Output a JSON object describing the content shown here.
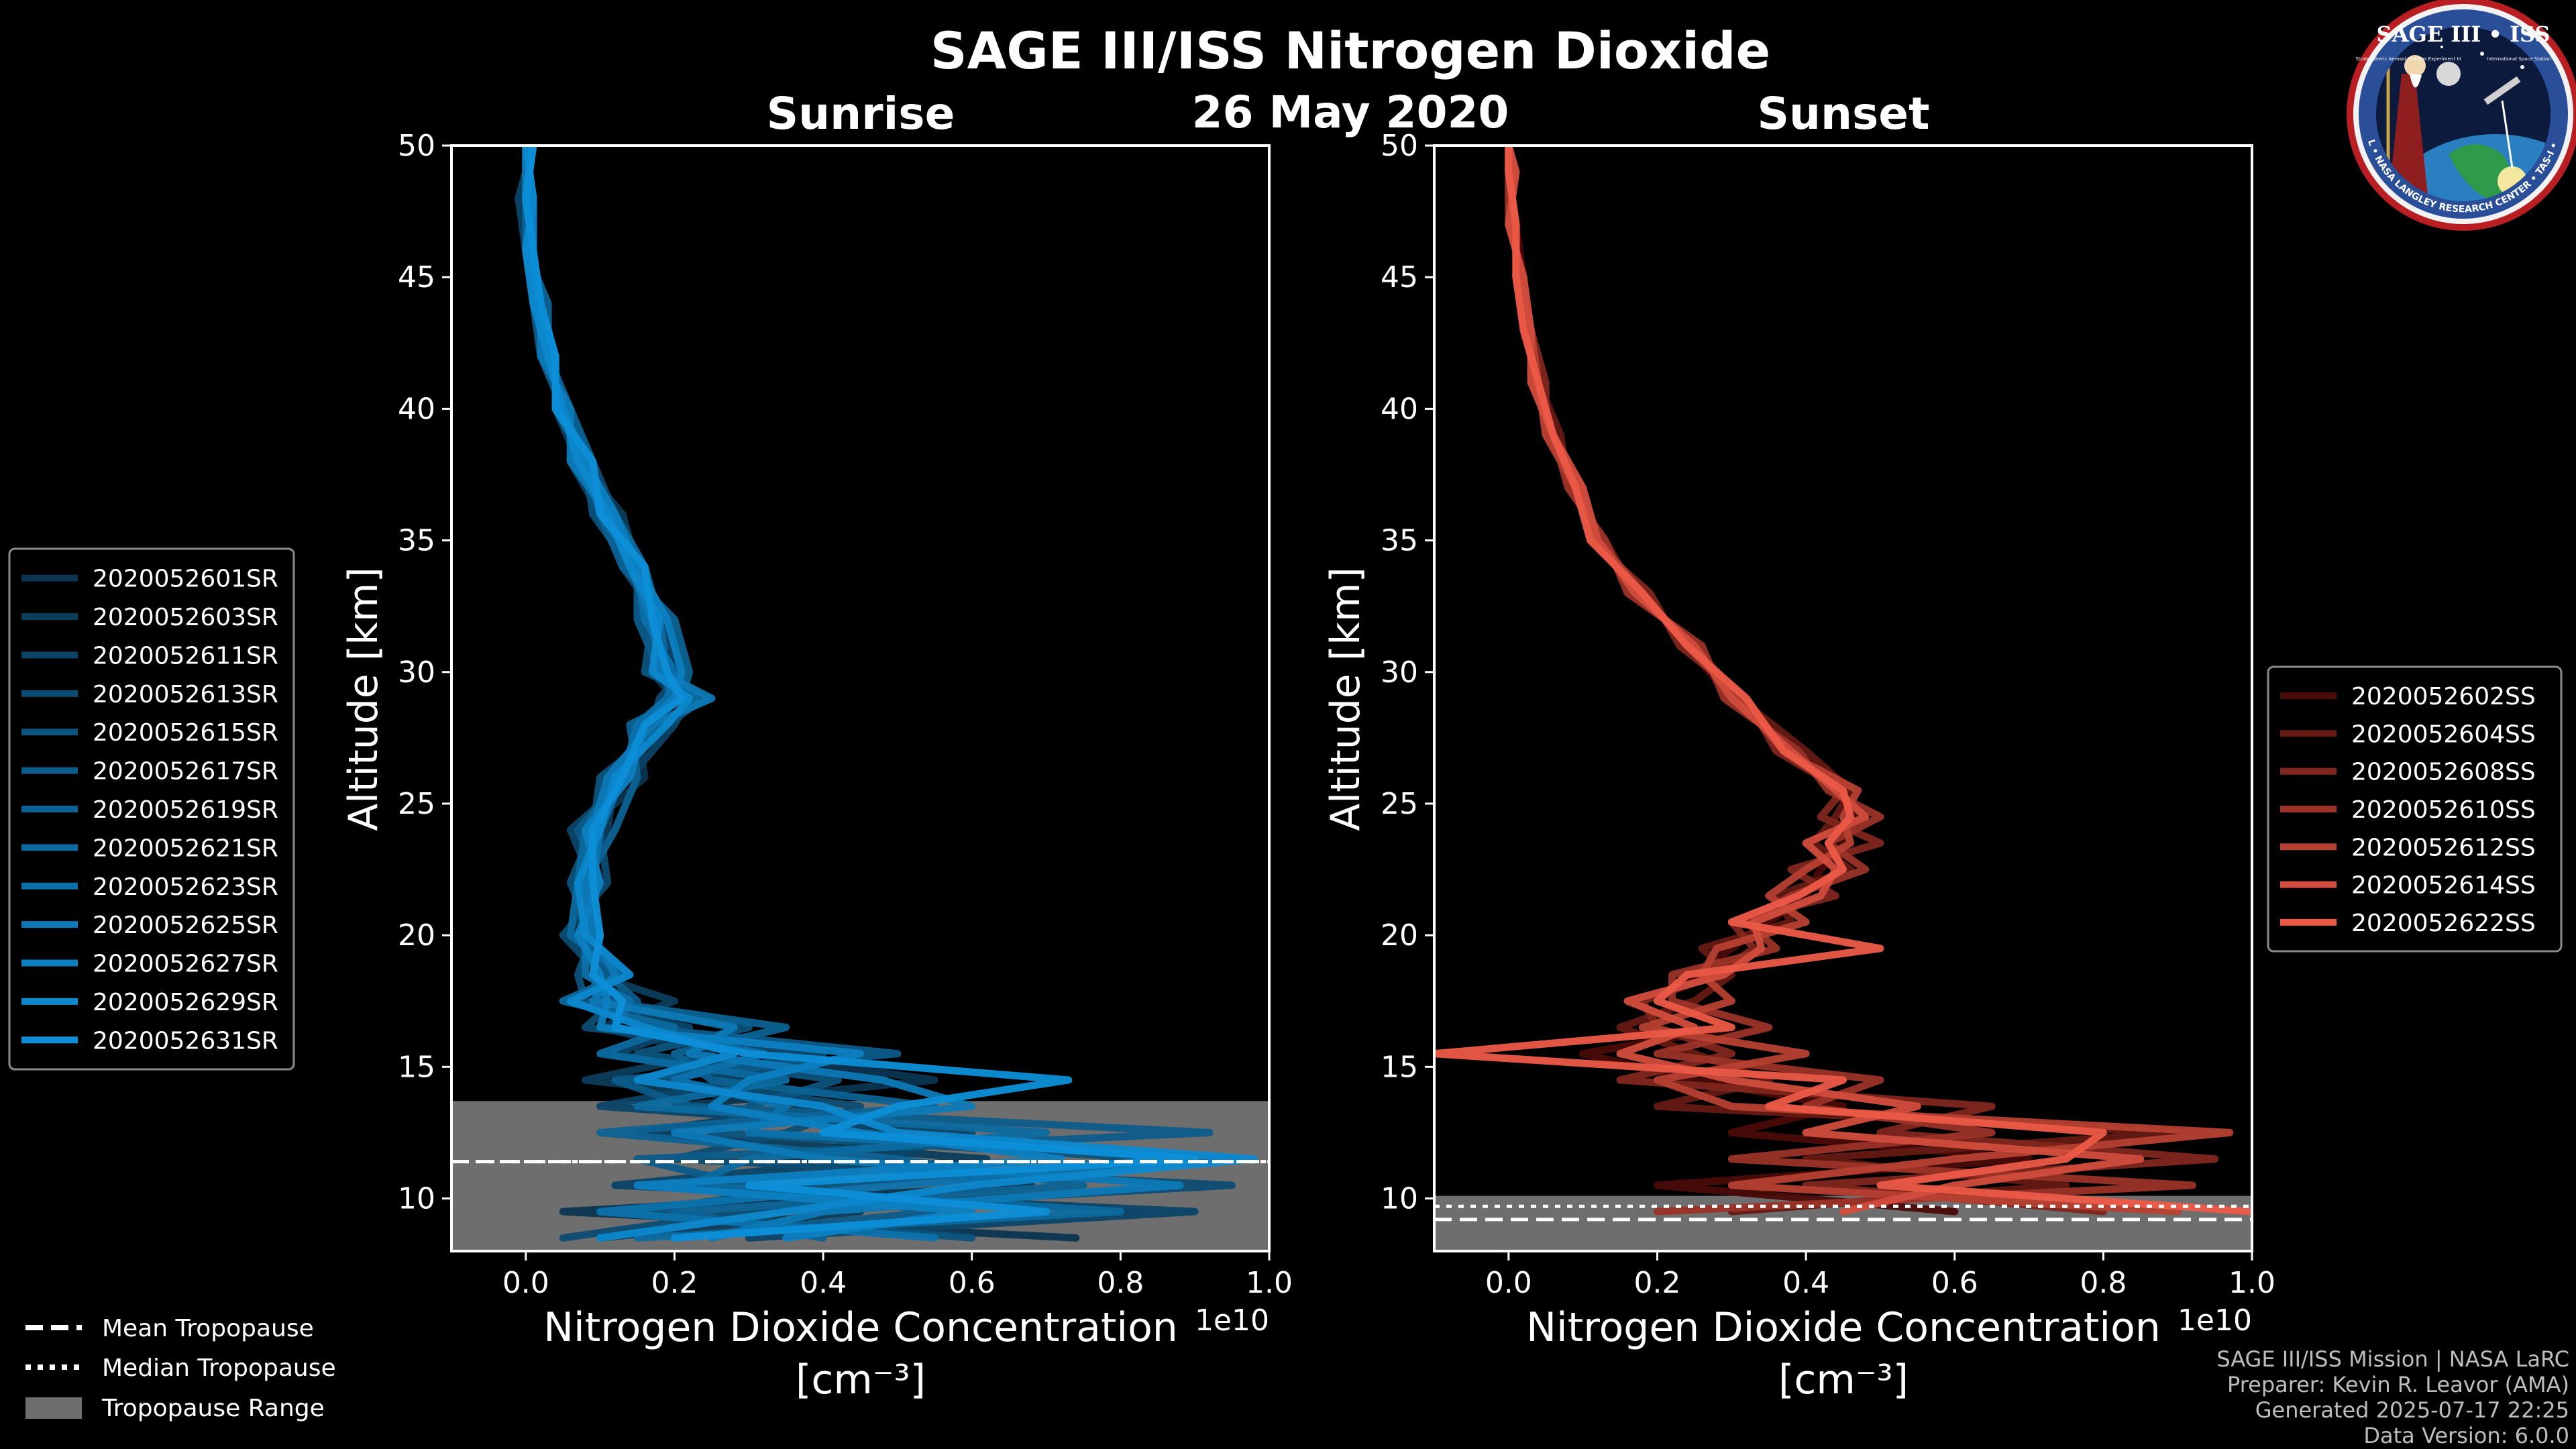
{
  "page": {
    "title": "SAGE III/ISS Nitrogen Dioxide",
    "date": "26 May 2020",
    "footer": [
      "SAGE III/ISS Mission | NASA LaRC",
      "Preparer: Kevin R. Leavor (AMA)",
      "Generated 2025-07-17 22:25",
      "Data Version: 6.0.0"
    ],
    "logo": {
      "title": "SAGE III • ISS",
      "ring_text": "BALL • NASA LANGLEY RESEARCH CENTER • TAS-I • ESA",
      "small_left": "Stratospheric Aerosol and Gas Experiment III",
      "small_right": "International Space Station"
    }
  },
  "tropopause_legend": {
    "mean": "Mean Tropopause",
    "median": "Median Tropopause",
    "range": "Tropopause Range"
  },
  "colors": {
    "sunrise_dark": "#0b3550",
    "sunrise_light": "#0d8fd8",
    "sunset_dark": "#4a0c08",
    "sunset_light": "#ec5a47",
    "tropopause_range": "#6e6e6e"
  },
  "chart_data": [
    {
      "type": "line",
      "title": "Sunrise",
      "xlabel": "Nitrogen Dioxide Concentration",
      "xlabel_units": "[cm⁻³]",
      "ylabel": "Altitude [km]",
      "x_multiplier": "1e10",
      "xlim": [
        -0.1,
        1.0
      ],
      "ylim": [
        8,
        50
      ],
      "xticks": [
        "0.0",
        "0.2",
        "0.4",
        "0.6",
        "0.8",
        "1.0"
      ],
      "yticks": [
        "10",
        "15",
        "20",
        "25",
        "30",
        "35",
        "40",
        "45",
        "50"
      ],
      "legend_position": "left",
      "altitude": [
        8.5,
        9.5,
        10.5,
        11.5,
        12.5,
        13.5,
        14.5,
        15.5,
        16.5,
        17.5,
        18.5,
        20,
        22,
        24,
        26,
        28,
        29,
        30,
        32,
        34,
        36,
        38,
        40,
        42,
        44,
        46,
        48,
        50
      ],
      "series": [
        {
          "name": "2020052601SR",
          "values": [
            0.74,
            0.05,
            0.68,
            0.35,
            0.5,
            0.2,
            0.55,
            0.3,
            0.18,
            0.07,
            0.12,
            0.06,
            0.1,
            0.08,
            0.16,
            0.15,
            0.19,
            0.2,
            0.17,
            0.14,
            0.11,
            0.08,
            0.05,
            0.03,
            0.02,
            0.0,
            0.01,
            0.0
          ]
        },
        {
          "name": "2020052603SR",
          "values": [
            0.1,
            0.45,
            0.2,
            0.62,
            0.15,
            0.4,
            0.08,
            0.25,
            0.1,
            0.2,
            0.09,
            0.1,
            0.07,
            0.11,
            0.12,
            0.18,
            0.2,
            0.17,
            0.19,
            0.15,
            0.13,
            0.07,
            0.04,
            0.04,
            0.01,
            0.01,
            0.0,
            0.0
          ]
        },
        {
          "name": "2020052611SR",
          "values": [
            0.3,
            0.9,
            0.12,
            0.48,
            0.6,
            0.1,
            0.3,
            0.12,
            0.22,
            0.06,
            0.14,
            0.08,
            0.09,
            0.06,
            0.14,
            0.2,
            0.22,
            0.19,
            0.16,
            0.16,
            0.1,
            0.06,
            0.06,
            0.02,
            0.03,
            0.0,
            -0.01,
            0.01
          ]
        },
        {
          "name": "2020052613SR",
          "values": [
            0.05,
            0.3,
            0.95,
            0.2,
            0.35,
            0.45,
            0.18,
            0.4,
            0.08,
            0.12,
            0.1,
            0.05,
            0.11,
            0.1,
            0.11,
            0.17,
            0.18,
            0.21,
            0.18,
            0.13,
            0.12,
            0.09,
            0.05,
            0.03,
            0.02,
            0.01,
            0.01,
            0.0
          ]
        },
        {
          "name": "2020052615SR",
          "values": [
            0.6,
            0.15,
            0.4,
            0.85,
            0.25,
            0.3,
            0.42,
            0.15,
            0.3,
            0.08,
            0.07,
            0.09,
            0.06,
            0.09,
            0.1,
            0.19,
            0.24,
            0.16,
            0.17,
            0.14,
            0.09,
            0.08,
            0.04,
            0.04,
            0.02,
            0.0,
            0.0,
            0.01
          ]
        },
        {
          "name": "2020052617SR",
          "values": [
            0.2,
            0.55,
            0.3,
            0.15,
            0.92,
            0.22,
            0.12,
            0.5,
            0.15,
            0.15,
            0.11,
            0.07,
            0.1,
            0.07,
            0.13,
            0.16,
            0.2,
            0.18,
            0.15,
            0.15,
            0.11,
            0.07,
            0.05,
            0.02,
            0.01,
            0.01,
            0.01,
            0.0
          ]
        },
        {
          "name": "2020052619SR",
          "values": [
            0.4,
            0.2,
            0.75,
            0.5,
            0.1,
            0.55,
            0.25,
            0.2,
            0.35,
            0.1,
            0.09,
            0.1,
            0.08,
            0.12,
            0.15,
            0.14,
            0.21,
            0.22,
            0.2,
            0.13,
            0.1,
            0.09,
            0.06,
            0.03,
            0.03,
            0.0,
            0.0,
            0.0
          ]
        },
        {
          "name": "2020052621SR",
          "values": [
            0.15,
            0.8,
            0.22,
            0.3,
            0.7,
            0.15,
            0.35,
            0.1,
            0.2,
            0.05,
            0.13,
            0.06,
            0.07,
            0.08,
            0.12,
            0.18,
            0.23,
            0.19,
            0.18,
            0.16,
            0.12,
            0.07,
            0.05,
            0.03,
            0.02,
            0.01,
            0.0,
            0.01
          ]
        },
        {
          "name": "2020052623SR",
          "values": [
            0.55,
            0.1,
            0.5,
            0.95,
            0.3,
            0.35,
            0.2,
            0.32,
            0.12,
            0.14,
            0.08,
            0.08,
            0.09,
            0.1,
            0.13,
            0.15,
            0.19,
            0.2,
            0.16,
            0.15,
            0.1,
            0.08,
            0.04,
            0.04,
            0.01,
            0.0,
            0.01,
            0.0
          ]
        },
        {
          "name": "2020052625SR",
          "values": [
            0.25,
            0.4,
            0.88,
            0.4,
            0.2,
            0.6,
            0.48,
            0.22,
            0.28,
            0.09,
            0.12,
            0.09,
            0.08,
            0.09,
            0.11,
            0.17,
            0.25,
            0.18,
            0.17,
            0.14,
            0.11,
            0.06,
            0.06,
            0.02,
            0.02,
            0.01,
            0.0,
            0.0
          ]
        },
        {
          "name": "2020052627SR",
          "values": [
            0.35,
            0.6,
            0.15,
            0.72,
            0.45,
            0.25,
            0.3,
            0.45,
            0.1,
            0.11,
            0.1,
            0.07,
            0.1,
            0.08,
            0.14,
            0.16,
            0.2,
            0.21,
            0.19,
            0.15,
            0.12,
            0.08,
            0.05,
            0.03,
            0.02,
            0.01,
            0.01,
            0.0
          ]
        },
        {
          "name": "2020052629SR",
          "values": [
            0.1,
            0.35,
            0.6,
            0.98,
            0.5,
            0.4,
            0.15,
            0.28,
            0.16,
            0.06,
            0.14,
            0.08,
            0.07,
            0.1,
            0.12,
            0.19,
            0.22,
            0.17,
            0.18,
            0.14,
            0.11,
            0.07,
            0.05,
            0.03,
            0.01,
            0.0,
            0.01,
            0.0
          ]
        },
        {
          "name": "2020052631SR",
          "values": [
            0.2,
            0.7,
            0.3,
            0.9,
            0.4,
            0.5,
            0.73,
            0.3,
            0.12,
            0.13,
            0.09,
            0.1,
            0.09,
            0.09,
            0.13,
            0.16,
            0.21,
            0.19,
            0.17,
            0.16,
            0.1,
            0.09,
            0.04,
            0.04,
            0.02,
            0.01,
            0.0,
            0.01
          ]
        }
      ],
      "tropopause": {
        "mean": 11.4,
        "median": 11.4,
        "range": [
          8,
          13.7
        ]
      }
    },
    {
      "type": "line",
      "title": "Sunset",
      "xlabel": "Nitrogen Dioxide Concentration",
      "xlabel_units": "[cm⁻³]",
      "ylabel": "Altitude [km]",
      "x_multiplier": "1e10",
      "xlim": [
        -0.1,
        1.0
      ],
      "ylim": [
        8,
        50
      ],
      "xticks": [
        "0.0",
        "0.2",
        "0.4",
        "0.6",
        "0.8",
        "1.0"
      ],
      "yticks": [
        "10",
        "15",
        "20",
        "25",
        "30",
        "35",
        "40",
        "45",
        "50"
      ],
      "legend_position": "right",
      "altitude": [
        9.5,
        10.5,
        11.5,
        12.5,
        13.5,
        14.5,
        15.5,
        16.5,
        17.5,
        18.5,
        19.5,
        20.5,
        21.5,
        22.5,
        23.5,
        24.5,
        25.5,
        27,
        29,
        31,
        33,
        35,
        37,
        39,
        41,
        43,
        45,
        47,
        49,
        50
      ],
      "series": [
        {
          "name": "2020052602SS",
          "values": [
            0.6,
            0.2,
            0.7,
            0.3,
            0.45,
            0.25,
            0.1,
            0.3,
            0.2,
            0.25,
            0.3,
            0.35,
            0.4,
            0.42,
            0.45,
            0.47,
            0.44,
            0.38,
            0.3,
            0.24,
            0.18,
            0.12,
            0.09,
            0.06,
            0.04,
            0.03,
            0.02,
            0.01,
            0.0,
            0.0
          ]
        },
        {
          "name": "2020052604SS",
          "values": [
            0.3,
            0.75,
            0.4,
            0.9,
            0.2,
            0.35,
            0.25,
            0.15,
            0.25,
            0.3,
            0.26,
            0.38,
            0.36,
            0.46,
            0.41,
            0.44,
            0.46,
            0.4,
            0.31,
            0.25,
            0.17,
            0.13,
            0.08,
            0.07,
            0.04,
            0.02,
            0.02,
            0.0,
            0.01,
            0.0
          ]
        },
        {
          "name": "2020052608SS",
          "values": [
            0.8,
            0.4,
            0.95,
            0.5,
            0.65,
            0.15,
            0.3,
            0.2,
            0.18,
            0.28,
            0.33,
            0.3,
            0.44,
            0.38,
            0.5,
            0.42,
            0.45,
            0.36,
            0.32,
            0.23,
            0.19,
            0.11,
            0.1,
            0.05,
            0.05,
            0.03,
            0.01,
            0.01,
            0.0,
            0.0
          ]
        },
        {
          "name": "2020052610SS",
          "values": [
            0.2,
            0.92,
            0.3,
            0.65,
            0.4,
            0.5,
            0.2,
            0.35,
            0.22,
            0.22,
            0.36,
            0.32,
            0.38,
            0.48,
            0.43,
            0.5,
            0.43,
            0.39,
            0.29,
            0.26,
            0.16,
            0.13,
            0.08,
            0.06,
            0.04,
            0.02,
            0.02,
            0.0,
            0.0,
            0.0
          ]
        },
        {
          "name": "2020052612SS",
          "values": [
            0.9,
            0.3,
            0.6,
            0.97,
            0.3,
            0.2,
            0.4,
            0.18,
            0.3,
            0.26,
            0.28,
            0.4,
            0.35,
            0.4,
            0.46,
            0.45,
            0.47,
            0.37,
            0.31,
            0.24,
            0.18,
            0.12,
            0.09,
            0.05,
            0.04,
            0.03,
            0.01,
            0.01,
            0.0,
            0.0
          ]
        },
        {
          "name": "2020052614SS",
          "values": [
            0.45,
            0.6,
            0.85,
            0.4,
            0.55,
            0.3,
            0.15,
            0.25,
            0.16,
            0.29,
            0.34,
            0.33,
            0.42,
            0.44,
            0.4,
            0.48,
            0.44,
            0.38,
            0.3,
            0.25,
            0.17,
            0.12,
            0.1,
            0.06,
            0.03,
            0.03,
            0.02,
            0.0,
            0.01,
            0.0
          ]
        },
        {
          "name": "2020052622SS",
          "values": [
            1.0,
            0.5,
            0.75,
            0.8,
            0.35,
            0.45,
            -0.1,
            0.3,
            0.2,
            0.24,
            0.5,
            0.3,
            0.39,
            0.45,
            0.43,
            0.46,
            0.45,
            0.37,
            0.32,
            0.24,
            0.18,
            0.11,
            0.09,
            0.06,
            0.04,
            0.02,
            0.01,
            0.01,
            0.0,
            0.0
          ]
        }
      ],
      "tropopause": {
        "mean": 9.2,
        "median": 9.7,
        "range": [
          8,
          10.1
        ]
      }
    }
  ]
}
